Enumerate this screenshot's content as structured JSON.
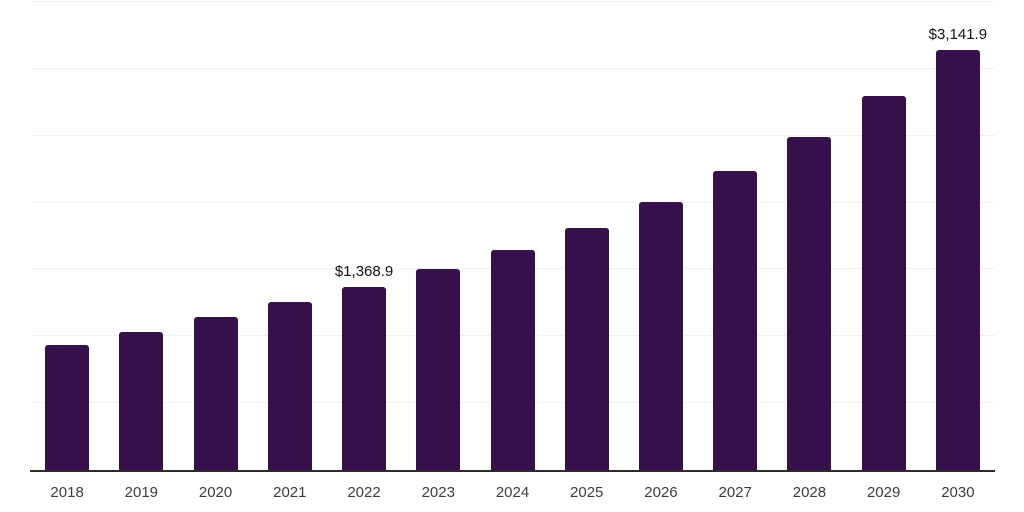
{
  "chart_data": {
    "type": "bar",
    "title": "",
    "xlabel": "",
    "ylabel": "",
    "categories": [
      "2018",
      "2019",
      "2020",
      "2021",
      "2022",
      "2023",
      "2024",
      "2025",
      "2026",
      "2027",
      "2028",
      "2029",
      "2030"
    ],
    "values": [
      935,
      1032,
      1145,
      1257,
      1368.9,
      1504,
      1646,
      1810,
      2005,
      2237,
      2491,
      2798,
      3141.9
    ],
    "point_labels": [
      "",
      "",
      "",
      "",
      "$1,368.9",
      "",
      "",
      "",
      "",
      "",
      "",
      "",
      "$3,141.9"
    ],
    "ylim": [
      0,
      3500
    ],
    "grid_step": 500,
    "grid_visible": true,
    "legend_position": "none",
    "colors": {
      "bar": "#36104b",
      "gridline": "#f2f2f3",
      "axis_line": "#2b2b2b",
      "tick_label": "#3d3d3d",
      "data_label": "#111111",
      "background": "#ffffff"
    }
  }
}
